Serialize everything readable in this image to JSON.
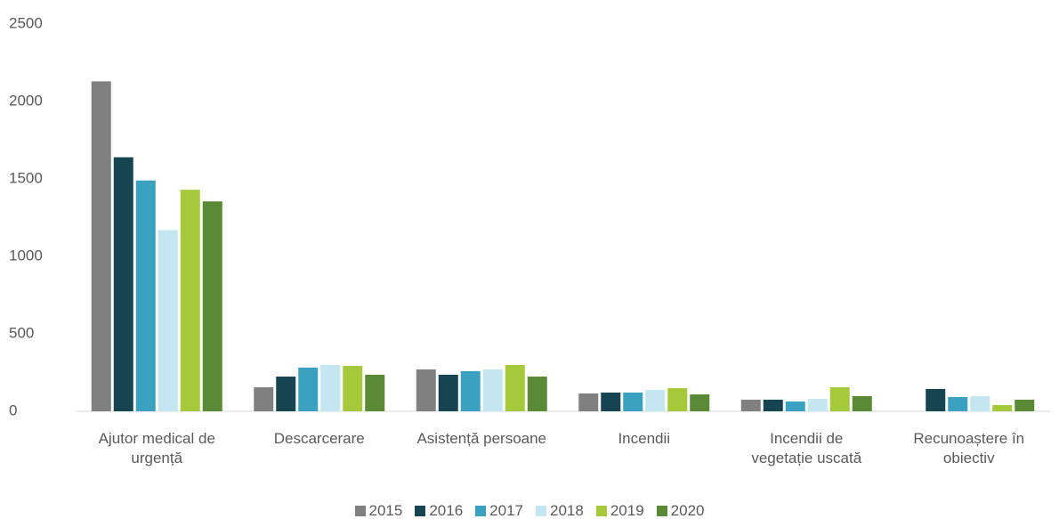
{
  "chart_data": {
    "type": "bar",
    "categories": [
      "Ajutor medical de urgență",
      "Descarcerare",
      "Asistență persoane",
      "Incendii",
      "Incendii de vegetație uscată",
      "Recunoaștere în obiectiv"
    ],
    "series": [
      {
        "name": "2015",
        "color": "#808080",
        "values": [
          2130,
          155,
          270,
          115,
          75,
          null
        ]
      },
      {
        "name": "2016",
        "color": "#164450",
        "values": [
          1640,
          224,
          236,
          121,
          75,
          144
        ]
      },
      {
        "name": "2017",
        "color": "#3aa2c0",
        "values": [
          1490,
          282,
          259,
          121,
          63,
          92
        ]
      },
      {
        "name": "2018",
        "color": "#c3e6f0",
        "values": [
          1170,
          299,
          270,
          138,
          80,
          98
        ]
      },
      {
        "name": "2019",
        "color": "#a5c93b",
        "values": [
          1430,
          293,
          299,
          149,
          155,
          40
        ]
      },
      {
        "name": "2020",
        "color": "#5b8a36",
        "values": [
          1355,
          236,
          224,
          109,
          98,
          75
        ]
      }
    ],
    "ylim": [
      0,
      2500
    ],
    "yticks": [
      0,
      500,
      1000,
      1500,
      2000,
      2500
    ],
    "grid": false,
    "legend": "bottom"
  }
}
